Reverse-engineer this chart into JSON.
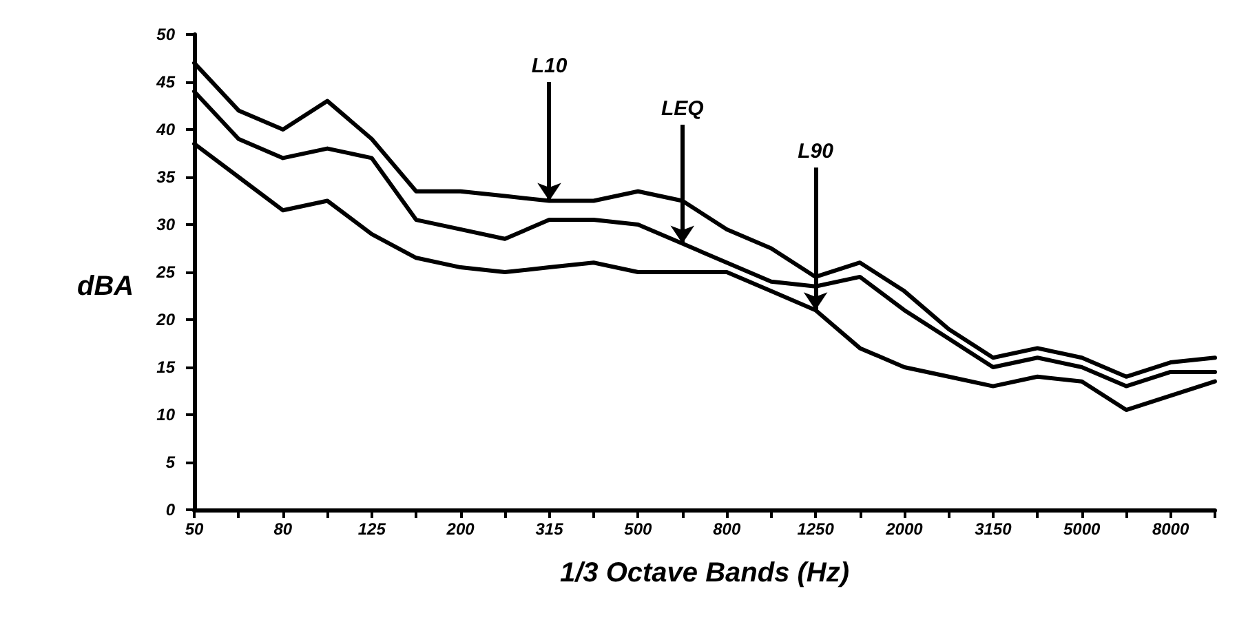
{
  "chart_data": {
    "type": "line",
    "xlabel": "1/3 Octave Bands (Hz)",
    "ylabel": "dBA",
    "categories": [
      "50",
      null,
      "80",
      null,
      "125",
      null,
      "200",
      null,
      "315",
      null,
      "500",
      null,
      "800",
      null,
      "1250",
      null,
      "2000",
      null,
      "3150",
      null,
      "5000",
      null,
      "8000",
      null
    ],
    "series": [
      {
        "color": "#000000",
        "values": [
          47,
          42,
          40,
          43,
          39,
          33.5,
          33.5,
          33,
          32.5,
          32.5,
          33.5,
          32.5,
          29.5,
          27.5,
          24.5,
          26,
          23,
          19,
          16,
          17,
          16,
          14,
          15.5,
          16
        ]
      },
      {
        "color": "#000000",
        "values": [
          44,
          39,
          37,
          38,
          37,
          30.5,
          29.5,
          28.5,
          30.5,
          30.5,
          30,
          28,
          26,
          24,
          23.5,
          24.5,
          21,
          18,
          15,
          16,
          15,
          13,
          14.5,
          14.5
        ]
      },
      {
        "color": "#000000",
        "values": [
          38.5,
          35,
          31.5,
          32.5,
          29,
          26.5,
          25.5,
          25,
          25.5,
          26,
          25,
          25,
          25,
          23,
          21,
          17,
          15,
          14,
          13,
          14,
          13.5,
          10.5,
          12,
          13.5
        ]
      }
    ],
    "annotations": [
      {
        "text": "L10",
        "x": "315",
        "y": 32.5
      },
      {
        "text": "LEQ",
        "y": 28
      },
      {
        "text": "L90",
        "x": "1250",
        "y": 21
      }
    ],
    "ylim": [
      0,
      50
    ],
    "yticks": [
      0,
      5,
      10,
      15,
      20,
      25,
      30,
      35,
      40,
      45,
      50
    ],
    "grid": false,
    "marker": "none",
    "line_style": "solid"
  }
}
